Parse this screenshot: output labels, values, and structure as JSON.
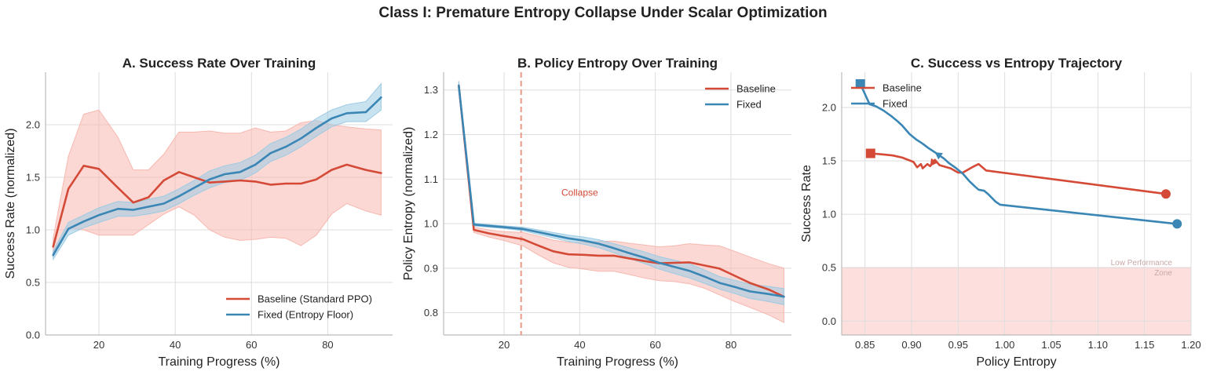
{
  "figure_title": "Class I: Premature Entropy Collapse Under Scalar Optimization",
  "colors": {
    "baseline": "#d44a37",
    "fixed": "#3a86b5",
    "baseline_band": "#f7b8b0",
    "fixed_band": "#9ccbe3",
    "zone": "#fde0de",
    "collapse_line": "#ea9a86",
    "grid": "#dddddd",
    "spine": "#bbbbbb"
  },
  "chart_data": [
    {
      "id": "A",
      "type": "line",
      "title": "A. Success Rate Over Training",
      "xlabel": "Training Progress (%)",
      "ylabel": "Success Rate (normalized)",
      "xlim": [
        6,
        97
      ],
      "ylim": [
        0,
        2.5
      ],
      "xticks": [
        20,
        40,
        60,
        80
      ],
      "xtick_labels": [
        "20",
        "40",
        "60",
        "80"
      ],
      "yticks": [
        0,
        0.5,
        1.0,
        1.5,
        2.0
      ],
      "ytick_labels": [
        "0.0",
        "0.5",
        "1.0",
        "1.5",
        "2.0"
      ],
      "legend_position": "lower-right",
      "x": [
        8,
        12,
        16,
        20,
        25,
        29,
        33,
        37,
        41,
        45,
        49,
        53,
        57,
        61,
        65,
        69,
        73,
        77,
        81,
        85,
        90,
        94
      ],
      "series": [
        {
          "name": "Baseline (Standard PPO)",
          "color_key": "baseline",
          "values": [
            0.84,
            1.39,
            1.61,
            1.58,
            1.4,
            1.26,
            1.31,
            1.47,
            1.55,
            1.5,
            1.45,
            1.46,
            1.47,
            1.46,
            1.43,
            1.44,
            1.44,
            1.48,
            1.57,
            1.62,
            1.57,
            1.54
          ],
          "lower": [
            0.78,
            1.02,
            1.0,
            0.95,
            0.95,
            0.95,
            1.05,
            1.15,
            1.22,
            1.14,
            1.0,
            0.93,
            0.9,
            0.91,
            0.93,
            0.92,
            0.85,
            0.95,
            1.15,
            1.25,
            1.18,
            1.14
          ],
          "upper": [
            0.92,
            1.7,
            2.1,
            2.14,
            1.88,
            1.57,
            1.57,
            1.72,
            1.93,
            1.93,
            1.94,
            1.92,
            1.92,
            1.97,
            1.93,
            1.94,
            2.02,
            2.04,
            2.0,
            1.98,
            1.96,
            1.95
          ]
        },
        {
          "name": "Fixed (Entropy Floor)",
          "color_key": "fixed",
          "values": [
            0.76,
            1.01,
            1.08,
            1.14,
            1.2,
            1.19,
            1.22,
            1.25,
            1.32,
            1.4,
            1.48,
            1.53,
            1.55,
            1.62,
            1.73,
            1.79,
            1.87,
            1.97,
            2.06,
            2.11,
            2.12,
            2.26
          ],
          "lower": [
            0.72,
            0.95,
            1.02,
            1.07,
            1.13,
            1.13,
            1.15,
            1.18,
            1.25,
            1.33,
            1.4,
            1.45,
            1.47,
            1.54,
            1.65,
            1.71,
            1.79,
            1.89,
            1.98,
            2.03,
            2.03,
            2.14
          ],
          "upper": [
            0.8,
            1.07,
            1.14,
            1.21,
            1.27,
            1.26,
            1.29,
            1.32,
            1.39,
            1.47,
            1.56,
            1.61,
            1.64,
            1.71,
            1.82,
            1.88,
            1.96,
            2.06,
            2.14,
            2.19,
            2.22,
            2.39
          ]
        }
      ]
    },
    {
      "id": "B",
      "type": "line",
      "title": "B. Policy Entropy Over Training",
      "xlabel": "Training Progress (%)",
      "ylabel": "Policy Entropy (normalized)",
      "xlim": [
        4,
        96
      ],
      "ylim": [
        0.75,
        1.34
      ],
      "xticks": [
        20,
        40,
        60,
        80
      ],
      "xtick_labels": [
        "20",
        "40",
        "60",
        "80"
      ],
      "yticks": [
        0.8,
        0.9,
        1.0,
        1.1,
        1.2,
        1.3
      ],
      "ytick_labels": [
        "0.8",
        "0.9",
        "1.0",
        "1.1",
        "1.2",
        "1.3"
      ],
      "legend_position": "upper-right",
      "collapse_x": 24.5,
      "collapse_label": "Collapse",
      "collapse_label_pos": [
        40,
        1.07
      ],
      "x": [
        8,
        12,
        16,
        20,
        25,
        29,
        33,
        37,
        41,
        45,
        49,
        53,
        57,
        61,
        65,
        69,
        73,
        77,
        81,
        85,
        90,
        94
      ],
      "series": [
        {
          "name": "Baseline",
          "color_key": "baseline",
          "values": [
            1.31,
            0.986,
            0.978,
            0.972,
            0.965,
            0.951,
            0.938,
            0.931,
            0.93,
            0.928,
            0.928,
            0.922,
            0.916,
            0.911,
            0.912,
            0.913,
            0.906,
            0.899,
            0.883,
            0.867,
            0.852,
            0.836
          ],
          "lower": [
            1.3,
            0.98,
            0.97,
            0.962,
            0.95,
            0.93,
            0.912,
            0.902,
            0.898,
            0.893,
            0.893,
            0.886,
            0.878,
            0.872,
            0.87,
            0.865,
            0.855,
            0.84,
            0.825,
            0.812,
            0.795,
            0.778
          ],
          "upper": [
            1.32,
            0.992,
            0.986,
            0.982,
            0.98,
            0.972,
            0.963,
            0.958,
            0.958,
            0.96,
            0.961,
            0.956,
            0.952,
            0.948,
            0.95,
            0.955,
            0.952,
            0.95,
            0.938,
            0.925,
            0.91,
            0.9
          ]
        },
        {
          "name": "Fixed",
          "color_key": "fixed",
          "values": [
            1.31,
            0.998,
            0.995,
            0.992,
            0.988,
            0.981,
            0.974,
            0.967,
            0.962,
            0.955,
            0.945,
            0.934,
            0.924,
            0.912,
            0.903,
            0.894,
            0.881,
            0.867,
            0.858,
            0.848,
            0.842,
            0.836
          ],
          "lower": [
            1.3,
            0.995,
            0.992,
            0.989,
            0.984,
            0.976,
            0.968,
            0.96,
            0.954,
            0.946,
            0.935,
            0.922,
            0.911,
            0.898,
            0.888,
            0.878,
            0.866,
            0.853,
            0.843,
            0.832,
            0.825,
            0.818
          ],
          "upper": [
            1.32,
            1.001,
            0.998,
            0.995,
            0.992,
            0.986,
            0.98,
            0.974,
            0.97,
            0.964,
            0.955,
            0.946,
            0.937,
            0.926,
            0.918,
            0.91,
            0.896,
            0.881,
            0.873,
            0.864,
            0.859,
            0.854
          ]
        }
      ]
    },
    {
      "id": "C",
      "type": "line",
      "title": "C. Success vs Entropy Trajectory",
      "xlabel": "Policy Entropy",
      "ylabel": "Success Rate",
      "xlim": [
        0.825,
        1.2
      ],
      "ylim": [
        -0.13,
        2.33
      ],
      "xticks": [
        0.85,
        0.9,
        0.95,
        1.0,
        1.05,
        1.1,
        1.15,
        1.2
      ],
      "xtick_labels": [
        "0.85",
        "0.90",
        "0.95",
        "1.00",
        "1.05",
        "1.10",
        "1.15",
        "1.20"
      ],
      "yticks": [
        0.0,
        0.5,
        1.0,
        1.5,
        2.0
      ],
      "ytick_labels": [
        "0.0",
        "0.5",
        "1.0",
        "1.5",
        "2.0"
      ],
      "legend_position": "upper-left",
      "zone": {
        "y0": -0.13,
        "y1": 0.5,
        "label_line1": "Low Performance",
        "label_line2": "Zone"
      },
      "series": [
        {
          "name": "Baseline",
          "color_key": "baseline",
          "x": [
            1.173,
            0.98,
            0.972,
            0.965,
            0.955,
            0.95,
            0.942,
            0.93,
            0.925,
            0.92,
            0.917,
            0.912,
            0.91,
            0.906,
            0.902,
            0.89,
            0.88,
            0.87,
            0.856
          ],
          "y": [
            1.19,
            1.41,
            1.47,
            1.44,
            1.39,
            1.39,
            1.43,
            1.46,
            1.51,
            1.45,
            1.47,
            1.43,
            1.47,
            1.44,
            1.49,
            1.53,
            1.55,
            1.56,
            1.57
          ]
        },
        {
          "name": "Fixed",
          "color_key": "fixed",
          "x": [
            1.185,
            0.995,
            0.99,
            0.982,
            0.978,
            0.972,
            0.968,
            0.962,
            0.955,
            0.948,
            0.94,
            0.935,
            0.93,
            0.925,
            0.918,
            0.912,
            0.905,
            0.898,
            0.89,
            0.885,
            0.878,
            0.87,
            0.862,
            0.855,
            0.845
          ],
          "y": [
            0.91,
            1.09,
            1.12,
            1.19,
            1.22,
            1.23,
            1.26,
            1.31,
            1.38,
            1.43,
            1.48,
            1.52,
            1.55,
            1.58,
            1.62,
            1.66,
            1.7,
            1.75,
            1.83,
            1.87,
            1.92,
            1.97,
            2.01,
            2.03,
            2.22
          ]
        }
      ]
    }
  ]
}
